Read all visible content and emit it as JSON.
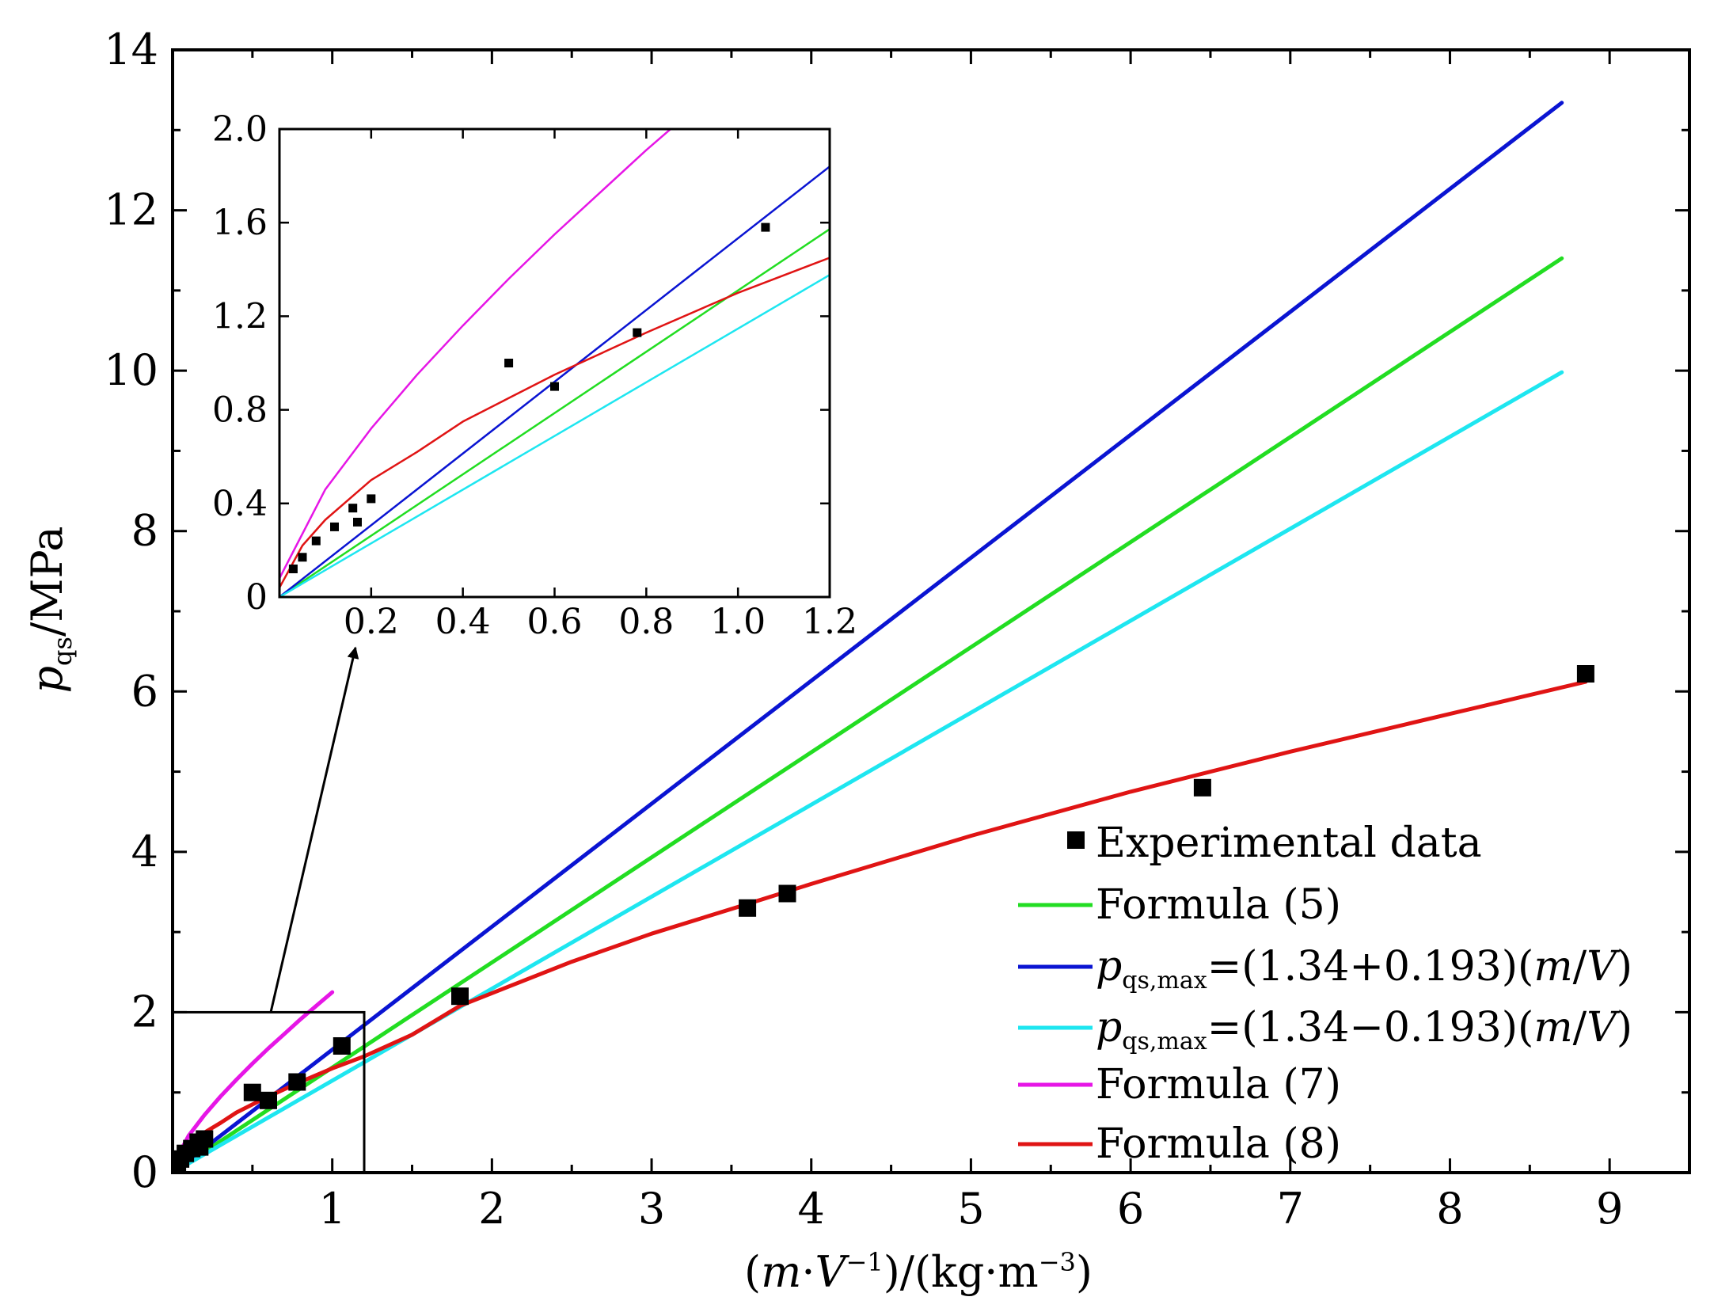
{
  "chart_data": {
    "type": "line",
    "xlabel": {
      "open": "(",
      "m": "m",
      "dot": "·",
      "V": "V",
      "exp1": "−1",
      "mid": ")/(kg·m",
      "exp2": "−3",
      "close": ")"
    },
    "ylabel": {
      "p": "p",
      "sub": "qs",
      "rest": "/MPa"
    },
    "xlim": [
      0,
      9.5
    ],
    "ylim": [
      0,
      14
    ],
    "xticks": [
      "1",
      "2",
      "3",
      "4",
      "5",
      "6",
      "7",
      "8",
      "9"
    ],
    "yticks": [
      "0",
      "2",
      "4",
      "6",
      "8",
      "10",
      "12",
      "14"
    ],
    "grid": false,
    "legend_position": "lower-right",
    "legend": [
      {
        "kind": "marker",
        "text": "Experimental data"
      },
      {
        "kind": "line",
        "text": "Formula (5)"
      },
      {
        "kind": "formula",
        "p": "p",
        "sub": "qs,max",
        "text": "=(1.34+0.193)(",
        "m": "m",
        "slash": "/",
        "V": "V",
        "close": ")"
      },
      {
        "kind": "formula",
        "p": "p",
        "sub": "qs,max",
        "text": "=(1.34−0.193)(",
        "m": "m",
        "slash": "/",
        "V": "V",
        "close": ")"
      },
      {
        "kind": "line",
        "text": "Formula (7)"
      },
      {
        "kind": "line",
        "text": "Formula (8)"
      }
    ],
    "series": [
      {
        "name": "Experimental data",
        "type": "scatter",
        "color": "#000000",
        "points": [
          [
            0.03,
            0.12
          ],
          [
            0.05,
            0.17
          ],
          [
            0.08,
            0.24
          ],
          [
            0.12,
            0.3
          ],
          [
            0.16,
            0.38
          ],
          [
            0.17,
            0.32
          ],
          [
            0.2,
            0.42
          ],
          [
            0.5,
            1.0
          ],
          [
            0.6,
            0.9
          ],
          [
            0.78,
            1.13
          ],
          [
            1.06,
            1.58
          ],
          [
            1.8,
            2.2
          ],
          [
            3.6,
            3.3
          ],
          [
            3.85,
            3.48
          ],
          [
            6.45,
            4.8
          ],
          [
            8.85,
            6.22
          ]
        ]
      },
      {
        "name": "Formula (5)",
        "color": "#22dd22",
        "points": [
          [
            0,
            0
          ],
          [
            8.7,
            11.4
          ]
        ]
      },
      {
        "name": "p_qs,max=(1.34+0.193)(m/V)",
        "color": "#0a14d2",
        "points": [
          [
            0,
            0
          ],
          [
            8.7,
            13.34
          ]
        ]
      },
      {
        "name": "p_qs,max=(1.34−0.193)(m/V)",
        "color": "#1ee6f0",
        "points": [
          [
            0,
            0
          ],
          [
            8.7,
            9.98
          ]
        ]
      },
      {
        "name": "Formula (7)",
        "color": "#e616e6",
        "points": [
          [
            0,
            0.08
          ],
          [
            0.1,
            0.46
          ],
          [
            0.2,
            0.72
          ],
          [
            0.3,
            0.95
          ],
          [
            0.4,
            1.16
          ],
          [
            0.5,
            1.36
          ],
          [
            0.6,
            1.55
          ],
          [
            0.7,
            1.73
          ],
          [
            0.8,
            1.91
          ],
          [
            0.9,
            2.08
          ],
          [
            1.0,
            2.25
          ]
        ]
      },
      {
        "name": "Formula (8)",
        "color": "#e01414",
        "points": [
          [
            0.0,
            0.04
          ],
          [
            0.05,
            0.22
          ],
          [
            0.1,
            0.33
          ],
          [
            0.2,
            0.5
          ],
          [
            0.3,
            0.62
          ],
          [
            0.4,
            0.75
          ],
          [
            0.5,
            0.85
          ],
          [
            0.6,
            0.95
          ],
          [
            0.8,
            1.13
          ],
          [
            1.0,
            1.3
          ],
          [
            1.2,
            1.45
          ],
          [
            1.5,
            1.72
          ],
          [
            1.8,
            2.08
          ],
          [
            2.5,
            2.63
          ],
          [
            3.0,
            2.98
          ],
          [
            3.6,
            3.35
          ],
          [
            4.0,
            3.6
          ],
          [
            5.0,
            4.2
          ],
          [
            6.0,
            4.75
          ],
          [
            7.0,
            5.25
          ],
          [
            8.0,
            5.72
          ],
          [
            8.85,
            6.12
          ]
        ]
      }
    ],
    "inset": {
      "xlim": [
        0,
        1.2
      ],
      "ylim": [
        0,
        2.0
      ],
      "xticks": [
        "0.2",
        "0.4",
        "0.6",
        "0.8",
        "1.0",
        "1.2"
      ],
      "yticks": [
        "0",
        "0.4",
        "0.8",
        "1.2",
        "1.6",
        "2.0"
      ],
      "zoom_box": {
        "x": [
          0,
          1.2
        ],
        "y": [
          0,
          2.0
        ]
      }
    }
  }
}
